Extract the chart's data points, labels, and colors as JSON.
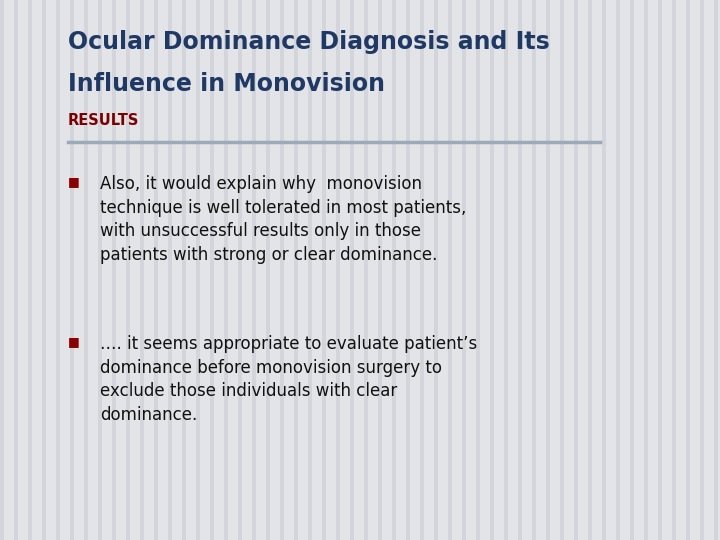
{
  "title_line1": "Ocular Dominance Diagnosis and Its",
  "title_line2": "Influence in Monovision",
  "section_label": "RESULTS",
  "title_color": "#1F3864",
  "section_color": "#7B0000",
  "background_color": "#E2E4E8",
  "divider_color": "#9AAABB",
  "bullet_color": "#8B0000",
  "text_color": "#111111",
  "bullet1": "Also, it would explain why  monovision\ntechnique is well tolerated in most patients,\nwith unsuccessful results only in those\npatients with strong or clear dominance.",
  "bullet2": "…. it seems appropriate to evaluate patient’s\ndominance before monovision surgery to\nexclude those individuals with clear\ndominance.",
  "stripe_color": "#C8CAD0",
  "stripe_alpha": 0.55,
  "fig_width": 7.2,
  "fig_height": 5.4,
  "dpi": 100
}
